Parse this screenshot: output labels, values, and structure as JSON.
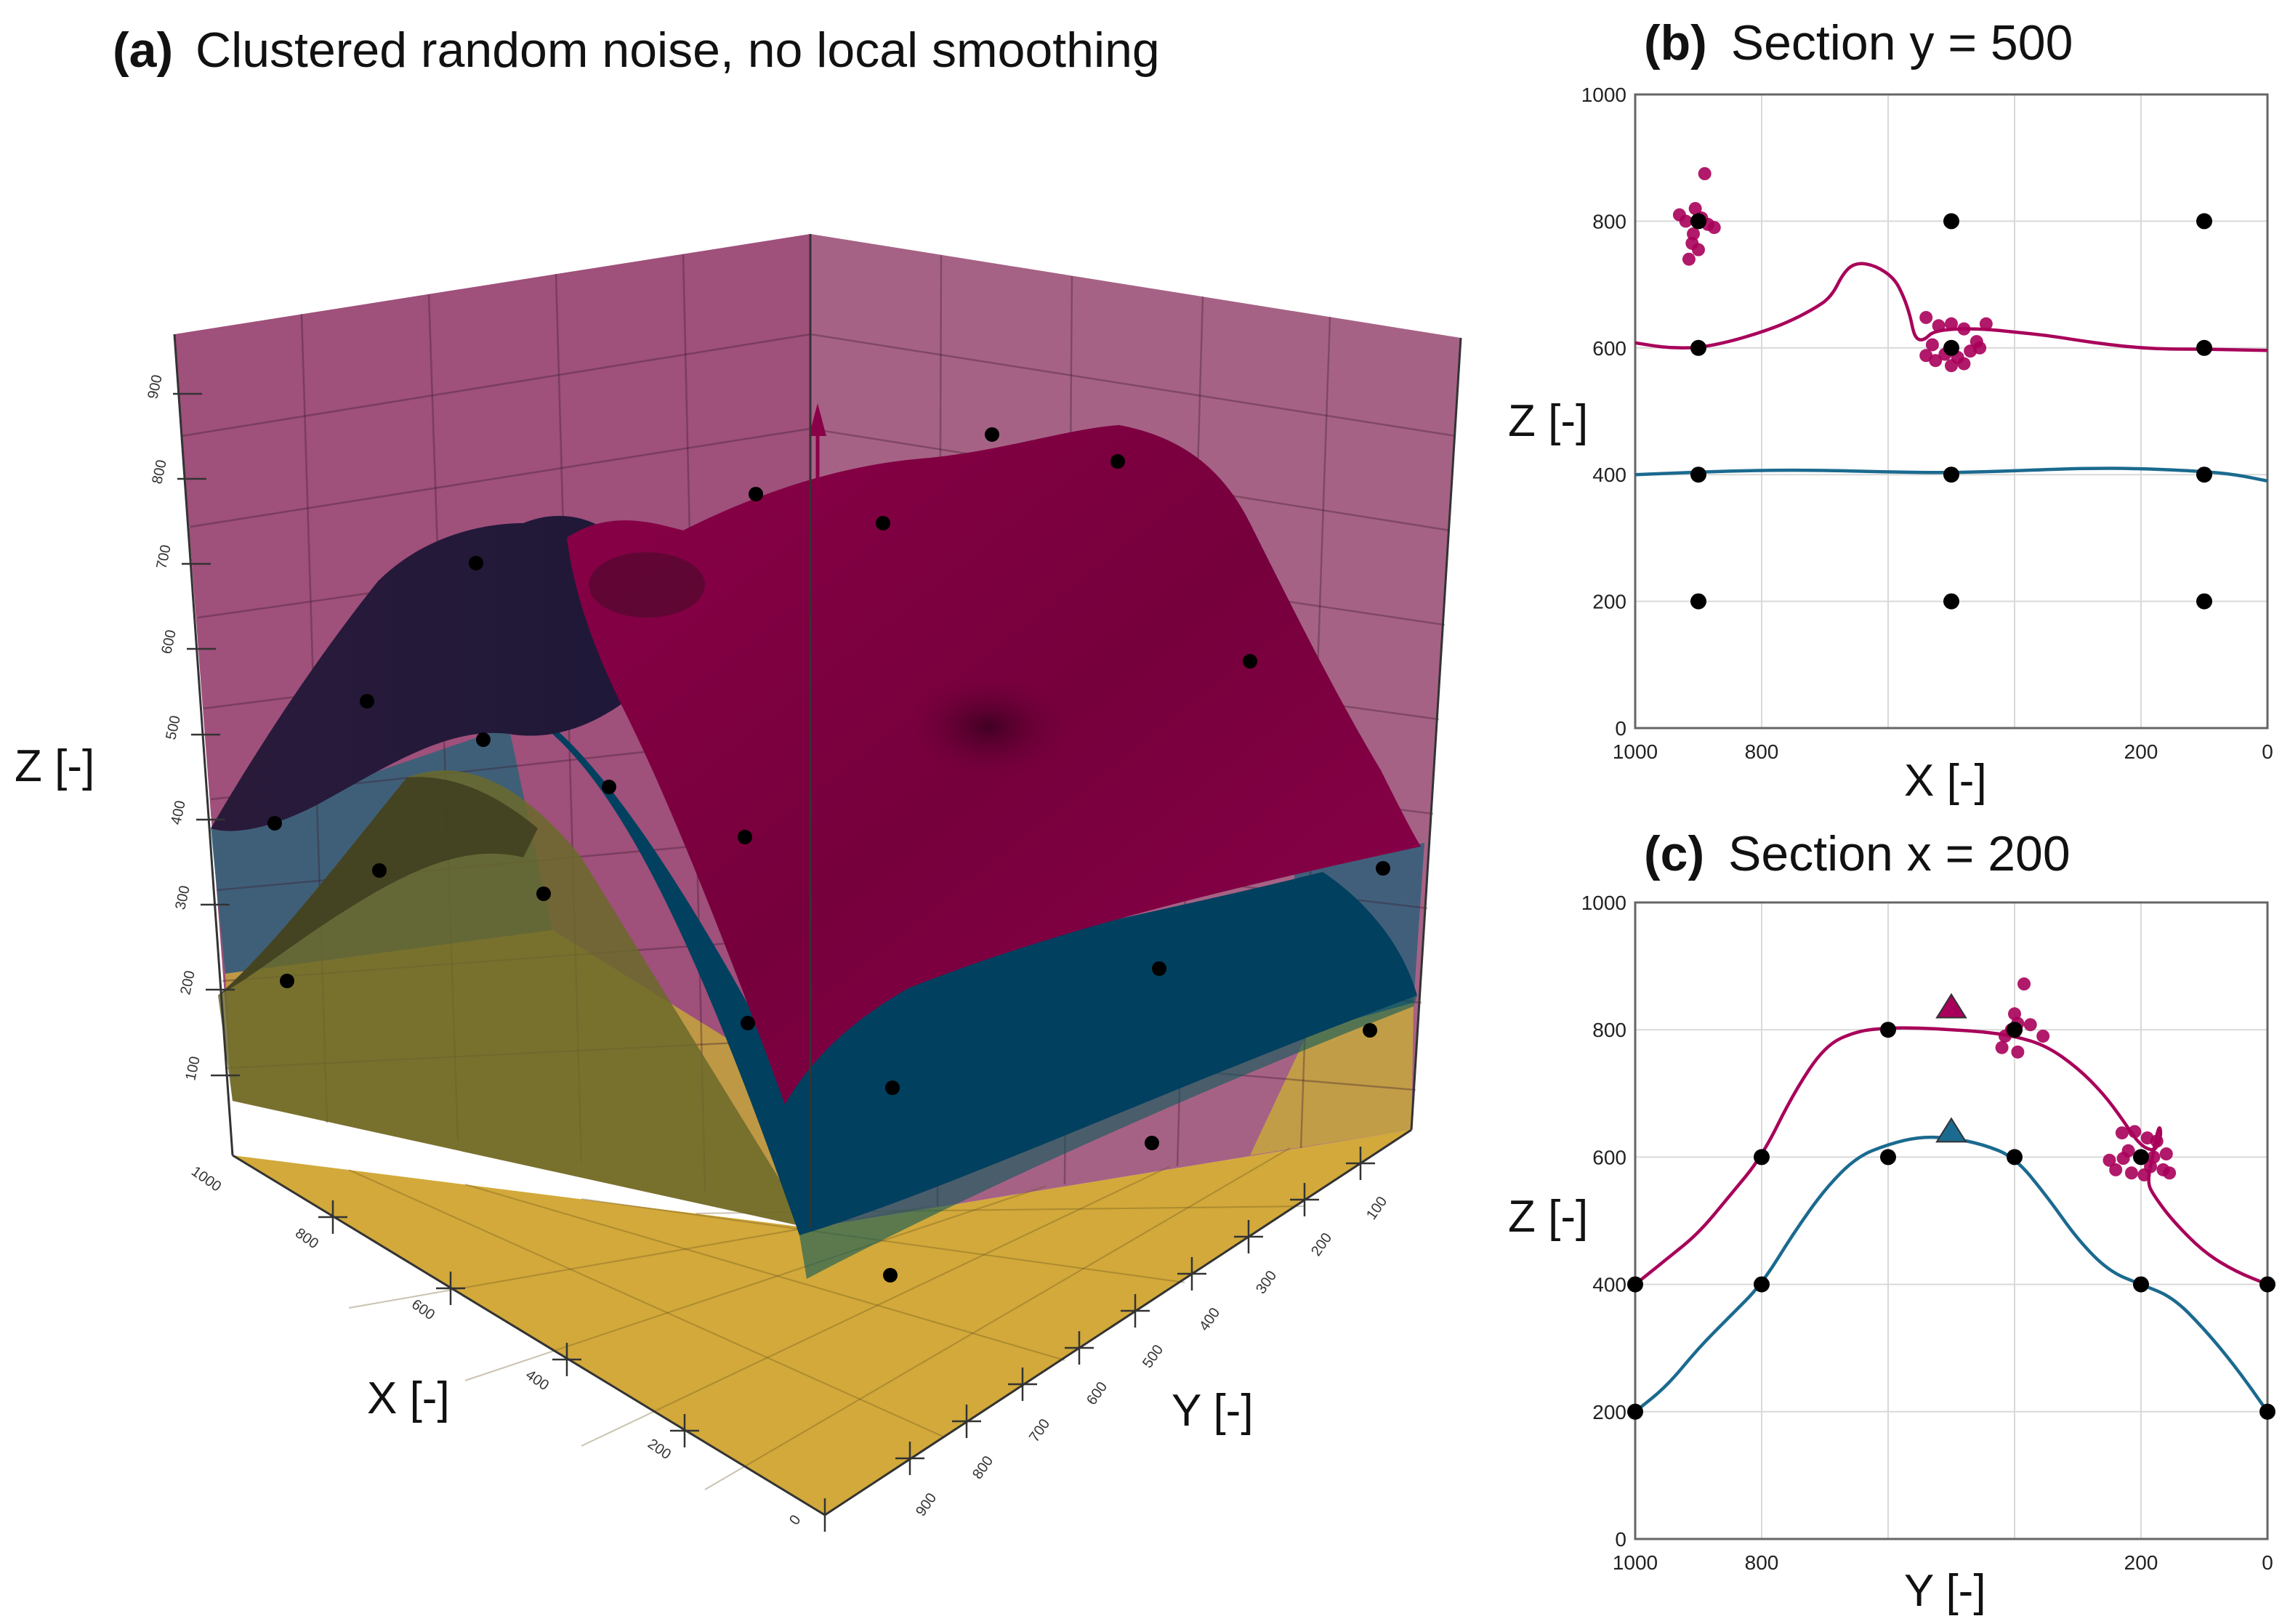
{
  "panel_a": {
    "label": "(a)",
    "title": "Clustered random noise, no local smoothing",
    "xlabel": "X [-]",
    "ylabel": "Y [-]",
    "zlabel": "Z [-]"
  },
  "chart_data": [
    {
      "id": "a",
      "type": "surface3d",
      "title": "(a) Clustered random noise, no local smoothing",
      "xlabel": "X [-]",
      "ylabel": "Y [-]",
      "zlabel": "Z [-]",
      "x_ticks": [
        "1000",
        "800",
        "600",
        "400",
        "200",
        "0"
      ],
      "y_ticks": [
        "100",
        "200",
        "300",
        "400",
        "500",
        "600",
        "700",
        "800",
        "900"
      ],
      "z_ticks": [
        "100",
        "200",
        "300",
        "400",
        "500",
        "600",
        "700",
        "800",
        "900"
      ],
      "xlim": [
        0,
        1000
      ],
      "ylim": [
        0,
        1000
      ],
      "zlim": [
        0,
        1000
      ],
      "layer_colors": {
        "top": "#b0005a",
        "middle": "#00557a",
        "bottom": "#c9a227"
      }
    },
    {
      "id": "b",
      "type": "line",
      "label": "(b)",
      "title": "Section y = 500",
      "xlabel": "X [-]",
      "ylabel": "Z [-]",
      "xlim": [
        1000,
        0
      ],
      "ylim": [
        0,
        1000
      ],
      "x_ticks": [
        1000,
        800,
        200,
        0
      ],
      "y_ticks": [
        0,
        200,
        400,
        600,
        800,
        1000
      ],
      "series": [
        {
          "color": "#a8005a",
          "x": [
            1000,
            950,
            900,
            850,
            800,
            760,
            720,
            690,
            670,
            650,
            620,
            590,
            575,
            565,
            560,
            555,
            548,
            540,
            530,
            500,
            450,
            400,
            350,
            300,
            250,
            200,
            150,
            100,
            50,
            0
          ],
          "y": [
            608,
            600,
            600,
            610,
            625,
            640,
            660,
            680,
            720,
            735,
            730,
            710,
            680,
            650,
            625,
            615,
            612,
            615,
            625,
            630,
            630,
            625,
            620,
            612,
            605,
            600,
            598,
            598,
            597,
            596
          ]
        },
        {
          "color": "#1b6a8f",
          "x": [
            1000,
            900,
            800,
            700,
            600,
            500,
            400,
            300,
            200,
            100,
            50,
            0
          ],
          "y": [
            400,
            404,
            407,
            407,
            404,
            403,
            406,
            410,
            410,
            405,
            400,
            390
          ]
        }
      ],
      "points_black": [
        [
          900,
          800
        ],
        [
          500,
          800
        ],
        [
          100,
          800
        ],
        [
          900,
          600
        ],
        [
          500,
          600
        ],
        [
          100,
          600
        ],
        [
          900,
          400
        ],
        [
          500,
          400
        ],
        [
          100,
          400
        ],
        [
          900,
          200
        ],
        [
          500,
          200
        ],
        [
          100,
          200
        ]
      ],
      "points_noise": [
        [
          905,
          820
        ],
        [
          890,
          875
        ],
        [
          920,
          800
        ],
        [
          895,
          805
        ],
        [
          910,
          765
        ],
        [
          900,
          755
        ],
        [
          915,
          740
        ],
        [
          875,
          790
        ],
        [
          930,
          810
        ],
        [
          885,
          795
        ],
        [
          908,
          780
        ],
        [
          540,
          648
        ],
        [
          520,
          635
        ],
        [
          500,
          638
        ],
        [
          480,
          630
        ],
        [
          460,
          610
        ],
        [
          445,
          638
        ],
        [
          530,
          605
        ],
        [
          510,
          590
        ],
        [
          490,
          585
        ],
        [
          470,
          595
        ],
        [
          455,
          600
        ],
        [
          525,
          580
        ],
        [
          500,
          572
        ],
        [
          480,
          575
        ],
        [
          540,
          588
        ]
      ],
      "noise_color": "#a8005a"
    },
    {
      "id": "c",
      "type": "line",
      "label": "(c)",
      "title": "Section x = 200",
      "xlabel": "Y [-]",
      "ylabel": "Z [-]",
      "xlim": [
        1000,
        0
      ],
      "ylim": [
        0,
        1000
      ],
      "x_ticks": [
        1000,
        800,
        200,
        0
      ],
      "y_ticks": [
        0,
        200,
        400,
        600,
        800,
        1000
      ],
      "series": [
        {
          "color": "#a8005a",
          "x": [
            1000,
            950,
            900,
            850,
            800,
            750,
            700,
            650,
            600,
            550,
            500,
            450,
            400,
            350,
            300,
            260,
            230,
            210,
            195,
            180,
            172,
            168,
            172,
            182,
            190,
            180,
            150,
            100,
            50,
            0
          ],
          "y": [
            400,
            440,
            480,
            540,
            600,
            700,
            775,
            798,
            803,
            803,
            800,
            797,
            790,
            775,
            740,
            700,
            660,
            630,
            615,
            610,
            620,
            640,
            650,
            600,
            560,
            540,
            500,
            450,
            420,
            400
          ]
        },
        {
          "color": "#1b6a8f",
          "x": [
            1000,
            950,
            900,
            850,
            800,
            750,
            700,
            650,
            600,
            550,
            500,
            450,
            400,
            350,
            300,
            250,
            200,
            150,
            100,
            50,
            0
          ],
          "y": [
            200,
            240,
            300,
            350,
            400,
            480,
            550,
            600,
            620,
            632,
            630,
            620,
            600,
            540,
            470,
            420,
            400,
            380,
            330,
            270,
            200
          ]
        }
      ],
      "points_black": [
        [
          1000,
          400
        ],
        [
          800,
          600
        ],
        [
          600,
          800
        ],
        [
          400,
          800
        ],
        [
          200,
          600
        ],
        [
          0,
          400
        ],
        [
          1000,
          200
        ],
        [
          800,
          400
        ],
        [
          600,
          600
        ],
        [
          400,
          600
        ],
        [
          200,
          400
        ],
        [
          0,
          200
        ]
      ],
      "triangles": [
        {
          "x": 500,
          "y": 835,
          "color": "#a8005a"
        },
        {
          "x": 500,
          "y": 640,
          "color": "#1b6a8f"
        }
      ],
      "points_noise": [
        [
          400,
          825
        ],
        [
          405,
          800
        ],
        [
          395,
          810
        ],
        [
          375,
          808
        ],
        [
          355,
          790
        ],
        [
          415,
          790
        ],
        [
          420,
          772
        ],
        [
          395,
          765
        ],
        [
          385,
          872
        ],
        [
          230,
          638
        ],
        [
          210,
          640
        ],
        [
          190,
          630
        ],
        [
          175,
          625
        ],
        [
          220,
          610
        ],
        [
          200,
          600
        ],
        [
          185,
          585
        ],
        [
          165,
          580
        ],
        [
          240,
          580
        ],
        [
          215,
          575
        ],
        [
          195,
          572
        ],
        [
          160,
          605
        ],
        [
          250,
          595
        ],
        [
          228,
          598
        ],
        [
          180,
          600
        ],
        [
          155,
          575
        ]
      ],
      "noise_color": "#a8005a"
    }
  ]
}
